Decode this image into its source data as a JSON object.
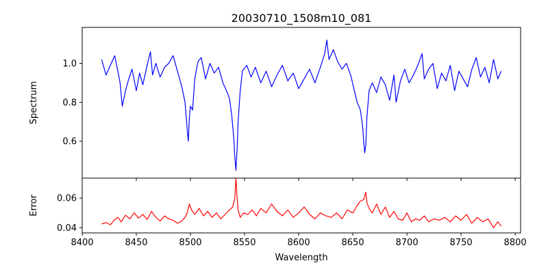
{
  "title": "20030710_1508m10_081",
  "chart_data": [
    {
      "type": "line",
      "ylabel": "Spectrum",
      "xlim": [
        8400,
        8805
      ],
      "ylim": [
        0.41,
        1.185
      ],
      "xticks": [
        8400,
        8450,
        8500,
        8550,
        8600,
        8650,
        8700,
        8750,
        8800
      ],
      "yticks": [
        0.6,
        0.8,
        1.0
      ],
      "ytick_labels": [
        "0.6",
        "0.8",
        "1.0"
      ],
      "show_x_tick_labels": false,
      "grid": false,
      "series": [
        {
          "color": "#0000ff",
          "x": [
            8418,
            8422,
            8426,
            8430,
            8433,
            8435,
            8437,
            8440,
            8443,
            8446,
            8450,
            8453,
            8456,
            8460,
            8463,
            8465,
            8468,
            8472,
            8476,
            8480,
            8484,
            8488,
            8492,
            8495,
            8497,
            8498,
            8499,
            8500,
            8502,
            8504,
            8507,
            8510,
            8514,
            8518,
            8522,
            8526,
            8530,
            8534,
            8536,
            8538,
            8540,
            8541,
            8542,
            8543,
            8544,
            8546,
            8548,
            8552,
            8556,
            8560,
            8565,
            8570,
            8575,
            8580,
            8585,
            8590,
            8595,
            8600,
            8605,
            8610,
            8615,
            8620,
            8624,
            8626,
            8628,
            8632,
            8636,
            8640,
            8644,
            8648,
            8651,
            8654,
            8657,
            8659,
            8660,
            8661,
            8662,
            8663,
            8665,
            8668,
            8672,
            8676,
            8680,
            8684,
            8688,
            8690,
            8694,
            8698,
            8702,
            8706,
            8710,
            8714,
            8716,
            8720,
            8724,
            8728,
            8732,
            8736,
            8740,
            8744,
            8748,
            8752,
            8756,
            8760,
            8764,
            8768,
            8772,
            8776,
            8780,
            8784,
            8787
          ],
          "y": [
            1.02,
            0.94,
            0.99,
            1.04,
            0.96,
            0.9,
            0.78,
            0.86,
            0.92,
            0.97,
            0.86,
            0.95,
            0.89,
            0.99,
            1.06,
            0.94,
            1.0,
            0.93,
            0.98,
            1.0,
            1.04,
            0.96,
            0.88,
            0.8,
            0.66,
            0.6,
            0.72,
            0.78,
            0.76,
            0.92,
            1.01,
            1.03,
            0.92,
            1.0,
            0.95,
            0.98,
            0.9,
            0.85,
            0.82,
            0.74,
            0.62,
            0.52,
            0.45,
            0.55,
            0.7,
            0.86,
            0.96,
            0.99,
            0.93,
            0.98,
            0.9,
            0.96,
            0.88,
            0.94,
            0.99,
            0.91,
            0.95,
            0.87,
            0.92,
            0.97,
            0.9,
            0.98,
            1.05,
            1.12,
            1.02,
            1.07,
            1.01,
            0.97,
            1.0,
            0.94,
            0.87,
            0.8,
            0.76,
            0.68,
            0.6,
            0.54,
            0.58,
            0.72,
            0.86,
            0.9,
            0.85,
            0.93,
            0.89,
            0.81,
            0.94,
            0.8,
            0.91,
            0.97,
            0.9,
            0.94,
            0.99,
            1.05,
            0.92,
            0.97,
            1.0,
            0.87,
            0.95,
            0.91,
            0.99,
            0.86,
            0.96,
            0.92,
            0.88,
            0.97,
            1.03,
            0.93,
            0.98,
            0.9,
            1.02,
            0.92,
            0.96
          ]
        }
      ]
    },
    {
      "type": "line",
      "xlabel": "Wavelength",
      "ylabel": "Error",
      "xlim": [
        8400,
        8805
      ],
      "ylim": [
        0.0365,
        0.0735
      ],
      "xticks": [
        8400,
        8450,
        8500,
        8550,
        8600,
        8650,
        8700,
        8750,
        8800
      ],
      "xtick_labels": [
        "8400",
        "8450",
        "8500",
        "8550",
        "8600",
        "8650",
        "8700",
        "8750",
        "8800"
      ],
      "yticks": [
        0.04,
        0.06
      ],
      "ytick_labels": [
        "0.04",
        "0.06"
      ],
      "grid": false,
      "series": [
        {
          "color": "#ff0000",
          "x": [
            8418,
            8422,
            8426,
            8430,
            8433,
            8436,
            8440,
            8444,
            8448,
            8452,
            8456,
            8460,
            8464,
            8468,
            8472,
            8476,
            8480,
            8484,
            8488,
            8492,
            8495,
            8497,
            8499,
            8501,
            8504,
            8508,
            8512,
            8516,
            8520,
            8524,
            8528,
            8532,
            8536,
            8539,
            8541,
            8542,
            8543,
            8544,
            8546,
            8549,
            8553,
            8557,
            8561,
            8565,
            8570,
            8575,
            8580,
            8585,
            8590,
            8595,
            8600,
            8605,
            8610,
            8615,
            8620,
            8625,
            8630,
            8635,
            8640,
            8645,
            8650,
            8654,
            8657,
            8660,
            8662,
            8663,
            8665,
            8668,
            8672,
            8676,
            8680,
            8684,
            8688,
            8692,
            8696,
            8700,
            8704,
            8708,
            8712,
            8716,
            8720,
            8725,
            8730,
            8735,
            8740,
            8745,
            8750,
            8755,
            8760,
            8765,
            8770,
            8775,
            8780,
            8784,
            8787
          ],
          "y": [
            0.0425,
            0.0435,
            0.042,
            0.0455,
            0.047,
            0.044,
            0.0485,
            0.046,
            0.05,
            0.0465,
            0.049,
            0.0455,
            0.051,
            0.047,
            0.0445,
            0.048,
            0.046,
            0.045,
            0.043,
            0.0445,
            0.047,
            0.05,
            0.056,
            0.052,
            0.049,
            0.053,
            0.048,
            0.051,
            0.047,
            0.05,
            0.046,
            0.049,
            0.052,
            0.054,
            0.06,
            0.0735,
            0.061,
            0.052,
            0.047,
            0.05,
            0.049,
            0.052,
            0.048,
            0.053,
            0.05,
            0.056,
            0.051,
            0.048,
            0.052,
            0.047,
            0.05,
            0.054,
            0.049,
            0.046,
            0.05,
            0.048,
            0.047,
            0.05,
            0.046,
            0.052,
            0.05,
            0.055,
            0.058,
            0.059,
            0.064,
            0.057,
            0.053,
            0.05,
            0.056,
            0.049,
            0.054,
            0.047,
            0.051,
            0.046,
            0.045,
            0.05,
            0.044,
            0.046,
            0.045,
            0.048,
            0.044,
            0.046,
            0.045,
            0.047,
            0.044,
            0.048,
            0.045,
            0.049,
            0.043,
            0.047,
            0.044,
            0.046,
            0.04,
            0.044,
            0.041
          ]
        }
      ]
    }
  ]
}
